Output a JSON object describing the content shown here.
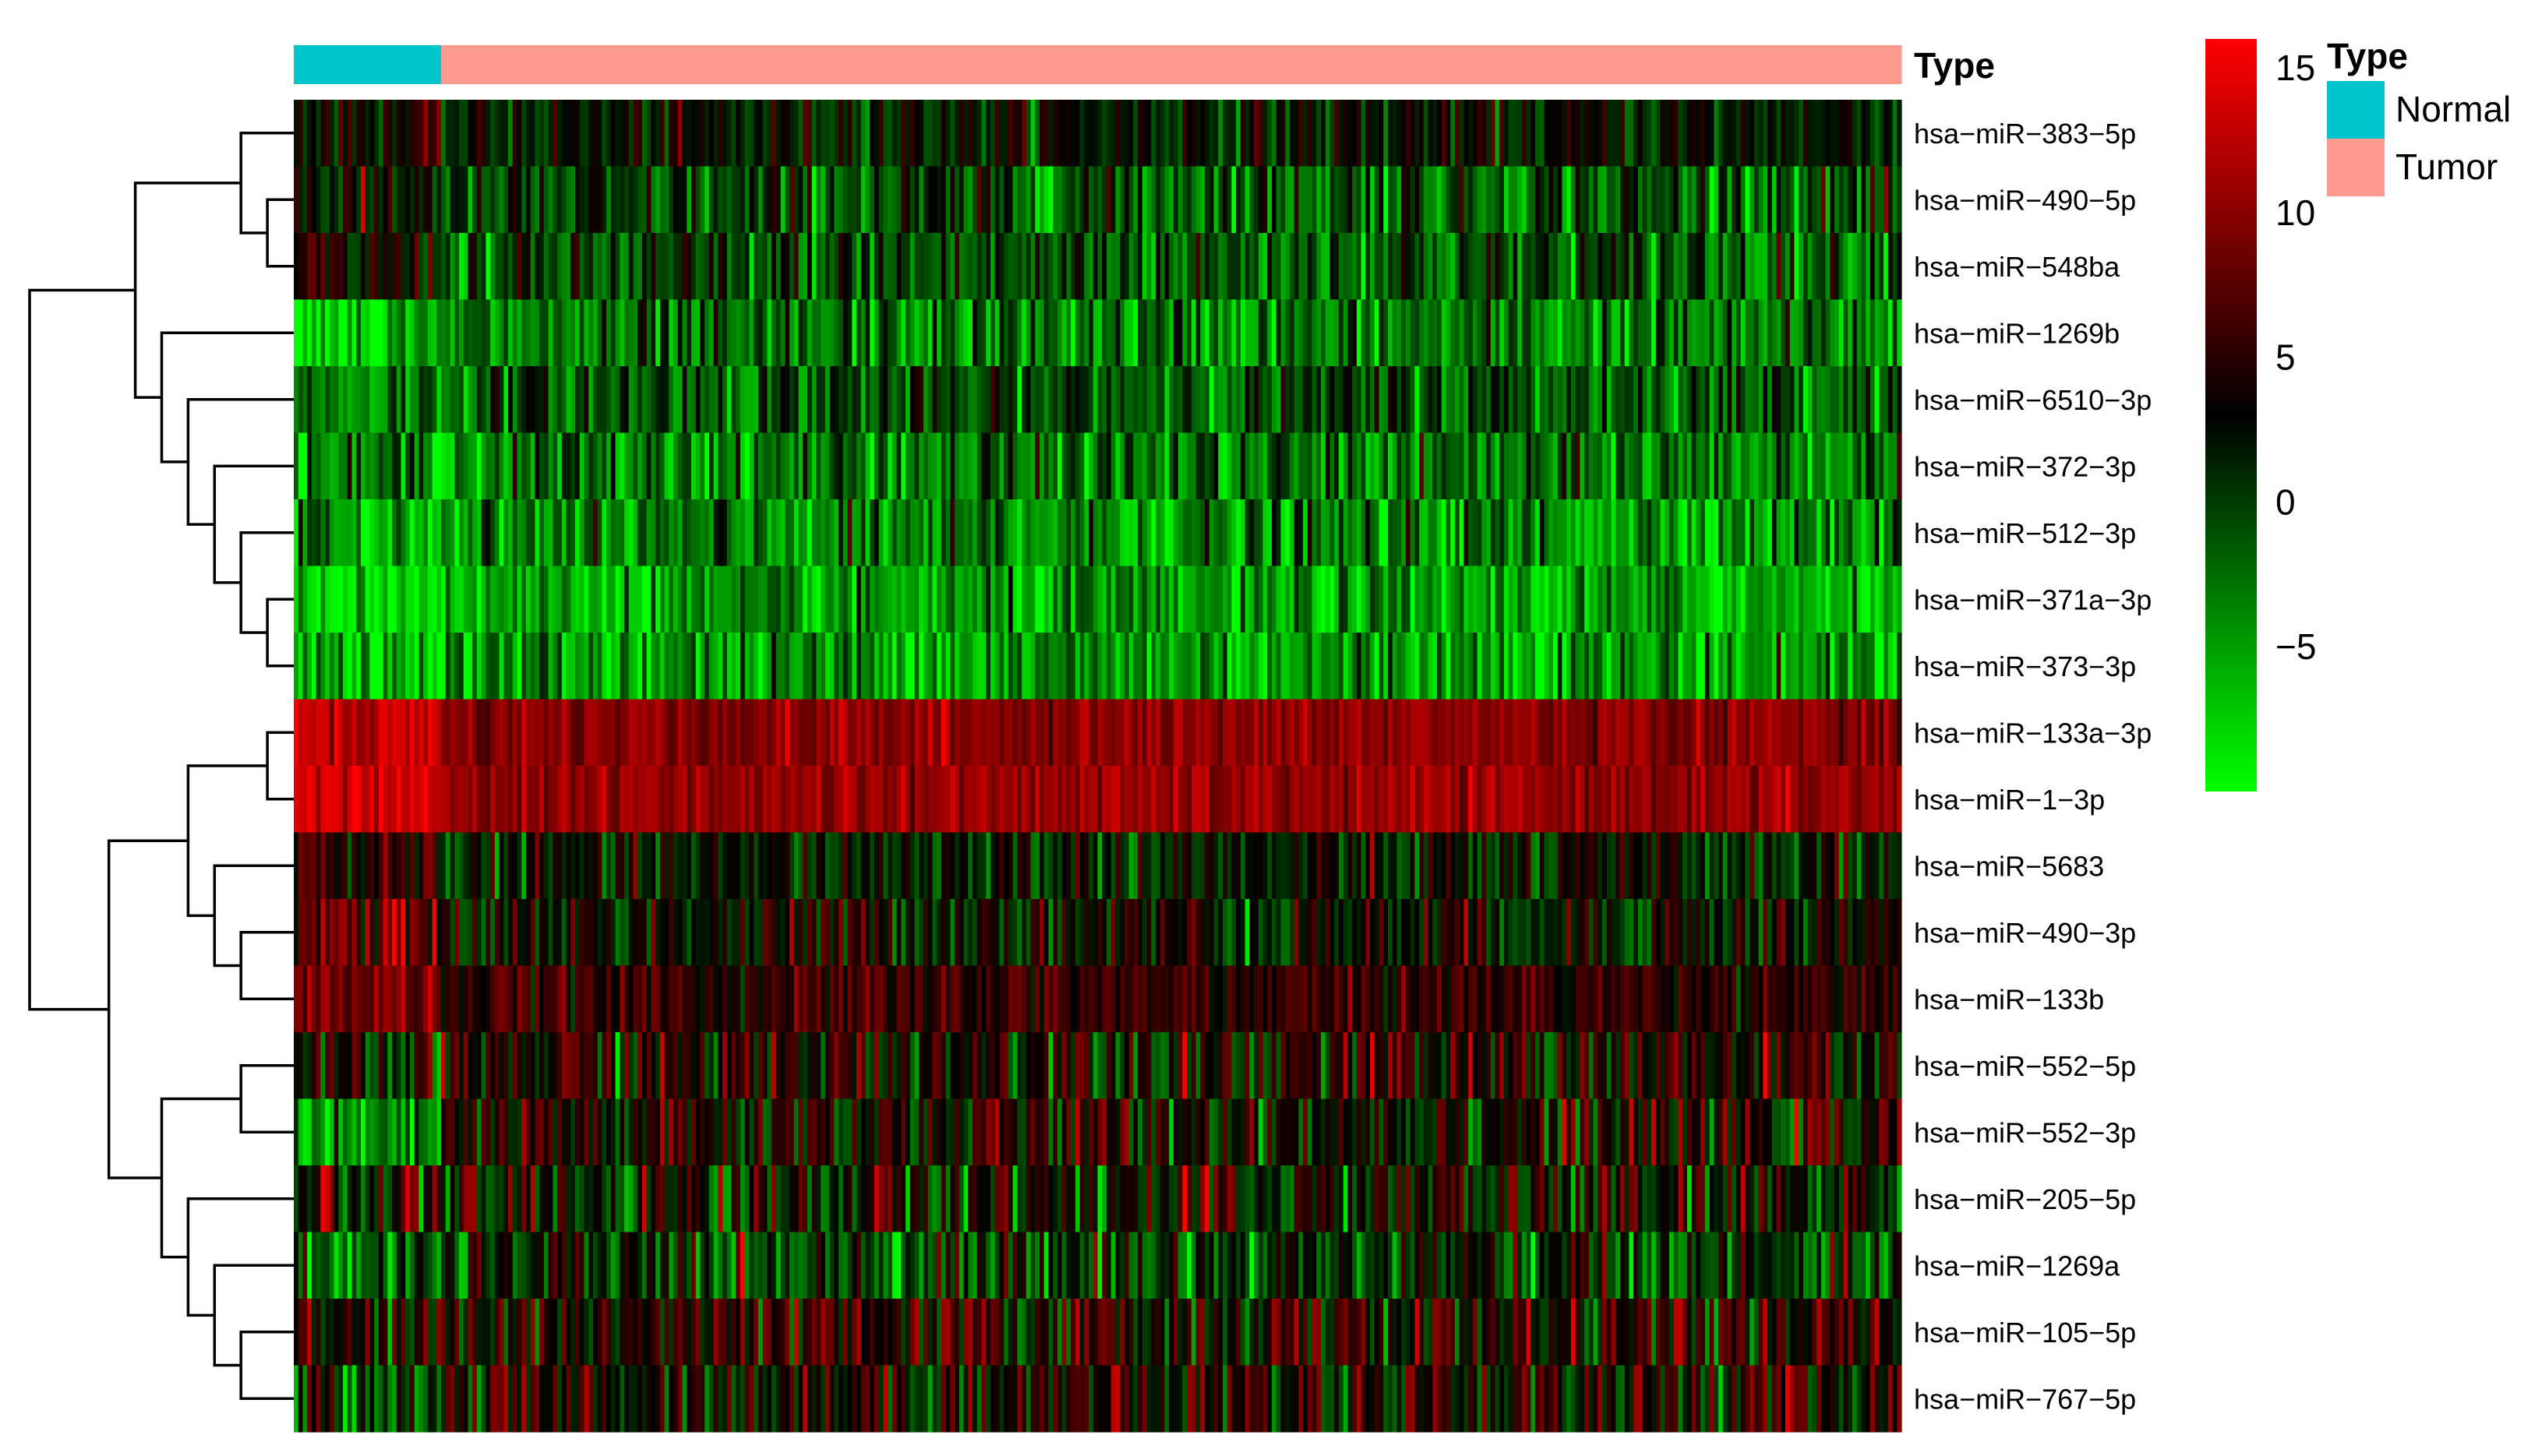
{
  "chart_data": {
    "type": "heatmap",
    "title": "",
    "annotation": {
      "label": "Type",
      "groups": [
        {
          "name": "Normal",
          "color": "#00C5CD",
          "count": 33
        },
        {
          "name": "Tumor",
          "color": "#FF9A8F",
          "count": 327
        }
      ]
    },
    "rows": [
      {
        "name": "hsa−miR−383−5p",
        "normal_mean": 3.5,
        "tumor_mean": 2.0,
        "spread": 2.5
      },
      {
        "name": "hsa−miR−490−5p",
        "normal_mean": 2.5,
        "tumor_mean": -1.0,
        "spread": 3.5
      },
      {
        "name": "hsa−miR−548ba",
        "normal_mean": 3.0,
        "tumor_mean": -1.0,
        "spread": 3.5
      },
      {
        "name": "hsa−miR−1269b",
        "normal_mean": -7.0,
        "tumor_mean": -3.5,
        "spread": 3.5
      },
      {
        "name": "hsa−miR−6510−3p",
        "normal_mean": -3.0,
        "tumor_mean": -1.0,
        "spread": 3.0
      },
      {
        "name": "hsa−miR−372−3p",
        "normal_mean": -3.5,
        "tumor_mean": -3.0,
        "spread": 3.5
      },
      {
        "name": "hsa−miR−512−3p",
        "normal_mean": -5.0,
        "tumor_mean": -4.0,
        "spread": 3.5
      },
      {
        "name": "hsa−miR−371a−3p",
        "normal_mean": -7.5,
        "tumor_mean": -5.5,
        "spread": 3.0
      },
      {
        "name": "hsa−miR−373−3p",
        "normal_mean": -6.5,
        "tumor_mean": -4.5,
        "spread": 3.5
      },
      {
        "name": "hsa−miR−133a−3p",
        "normal_mean": 13.0,
        "tumor_mean": 10.0,
        "spread": 1.5
      },
      {
        "name": "hsa−miR−1−3p",
        "normal_mean": 13.5,
        "tumor_mean": 10.5,
        "spread": 1.5
      },
      {
        "name": "hsa−miR−5683",
        "normal_mean": 5.0,
        "tumor_mean": 1.5,
        "spread": 3.0
      },
      {
        "name": "hsa−miR−490−3p",
        "normal_mean": 8.0,
        "tumor_mean": 3.0,
        "spread": 3.5
      },
      {
        "name": "hsa−miR−133b",
        "normal_mean": 9.0,
        "tumor_mean": 5.5,
        "spread": 2.0
      },
      {
        "name": "hsa−miR−552−5p",
        "normal_mean": 1.0,
        "tumor_mean": 4.0,
        "spread": 4.0
      },
      {
        "name": "hsa−miR−552−3p",
        "normal_mean": -5.5,
        "tumor_mean": 3.5,
        "spread": 4.0
      },
      {
        "name": "hsa−miR−205−5p",
        "normal_mean": 4.0,
        "tumor_mean": 2.5,
        "spread": 4.5
      },
      {
        "name": "hsa−miR−1269a",
        "normal_mean": -2.0,
        "tumor_mean": 0.5,
        "spread": 4.0
      },
      {
        "name": "hsa−miR−105−5p",
        "normal_mean": 3.0,
        "tumor_mean": 4.0,
        "spread": 4.0
      },
      {
        "name": "hsa−miR−767−5p",
        "normal_mean": 0.5,
        "tumor_mean": 4.0,
        "spread": 4.0
      }
    ],
    "colorscale": {
      "low": "#00FF00",
      "mid": "#000000",
      "high": "#FF0000",
      "min": -10,
      "mid_value": 3,
      "max": 16,
      "ticks": [
        15,
        10,
        5,
        0,
        -5
      ],
      "tick_labels": [
        "15",
        "10",
        "5",
        "0",
        "−5"
      ]
    },
    "dendrogram": {
      "merges": [
        [
          1,
          2,
          1
        ],
        [
          0,
          -1,
          2
        ],
        [
          7,
          8,
          1
        ],
        [
          6,
          -3,
          2
        ],
        [
          5,
          -4,
          3
        ],
        [
          4,
          -5,
          4
        ],
        [
          3,
          -6,
          5
        ],
        [
          -2,
          -7,
          6
        ],
        [
          9,
          10,
          1
        ],
        [
          12,
          13,
          2
        ],
        [
          11,
          -10,
          3
        ],
        [
          -9,
          -11,
          4
        ],
        [
          14,
          15,
          2
        ],
        [
          18,
          19,
          2
        ],
        [
          17,
          -14,
          3
        ],
        [
          16,
          -15,
          4
        ],
        [
          -13,
          -16,
          5
        ],
        [
          -12,
          -17,
          7
        ],
        [
          -8,
          -18,
          10
        ]
      ]
    },
    "legend": {
      "title": "Type",
      "position": "top-right",
      "items": [
        {
          "label": "Normal",
          "color": "#00C5CD"
        },
        {
          "label": "Tumor",
          "color": "#FF9A8F"
        }
      ]
    }
  }
}
